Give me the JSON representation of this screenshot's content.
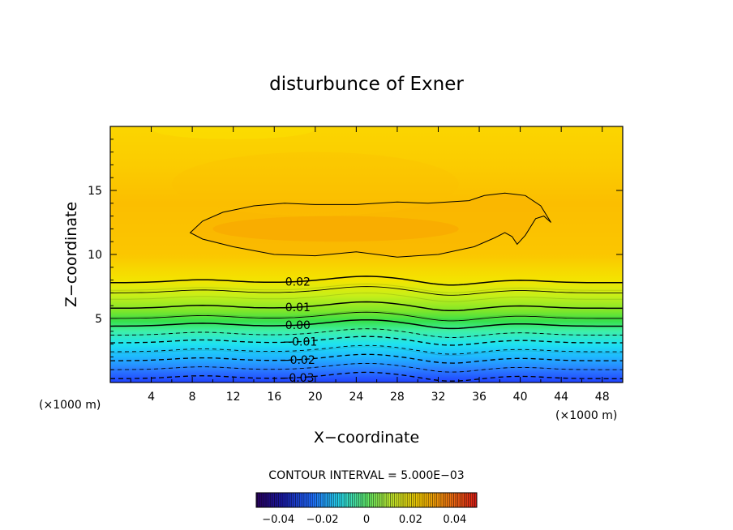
{
  "chart_data": {
    "type": "contour",
    "title": "disturbunce of Exner",
    "xlabel": "X−coordinate",
    "ylabel": "Z−coordinate",
    "x_unit": "(×1000 m)",
    "y_unit": "(×1000 m)",
    "xlim": [
      0,
      50
    ],
    "ylim": [
      0,
      20
    ],
    "x_ticks": [
      4,
      8,
      12,
      16,
      20,
      24,
      28,
      32,
      36,
      40,
      44,
      48
    ],
    "y_ticks": [
      5,
      10,
      15
    ],
    "contour_interval_text": "CONTOUR INTERVAL = 5.000E−03",
    "contour_interval": 0.005,
    "labeled_contours": [
      {
        "label": "0.02",
        "value": 0.02,
        "z": 7.8
      },
      {
        "label": "0.01",
        "value": 0.01,
        "z": 5.8
      },
      {
        "label": "0.00",
        "value": 0.0,
        "z": 4.4
      },
      {
        "label": "−0.01",
        "value": -0.01,
        "z": 3.1
      },
      {
        "label": "−0.02",
        "value": -0.02,
        "z": 1.7
      },
      {
        "label": "−0.03",
        "value": -0.03,
        "z": 0.3
      }
    ],
    "colorbar": {
      "min": -0.05,
      "max": 0.05,
      "tick_labels": [
        "−0.04",
        "−0.02",
        "0",
        "0.02",
        "0.04"
      ],
      "tick_values": [
        -0.04,
        -0.02,
        0,
        0.02,
        0.04
      ]
    },
    "field_bands": [
      {
        "z": 0.0,
        "value": -0.04
      },
      {
        "z": 1.0,
        "value": -0.03
      },
      {
        "z": 2.0,
        "value": -0.02
      },
      {
        "z": 3.0,
        "value": -0.01
      },
      {
        "z": 4.2,
        "value": 0.0
      },
      {
        "z": 5.5,
        "value": 0.01
      },
      {
        "z": 7.0,
        "value": 0.016
      },
      {
        "z": 8.5,
        "value": 0.021
      },
      {
        "z": 11.0,
        "value": 0.025
      },
      {
        "z": 14.0,
        "value": 0.024
      },
      {
        "z": 17.0,
        "value": 0.021
      },
      {
        "z": 20.0,
        "value": 0.018
      }
    ],
    "max_region": {
      "label": "",
      "x_range": [
        8,
        43
      ],
      "z_range": [
        9.8,
        14.5
      ]
    }
  }
}
